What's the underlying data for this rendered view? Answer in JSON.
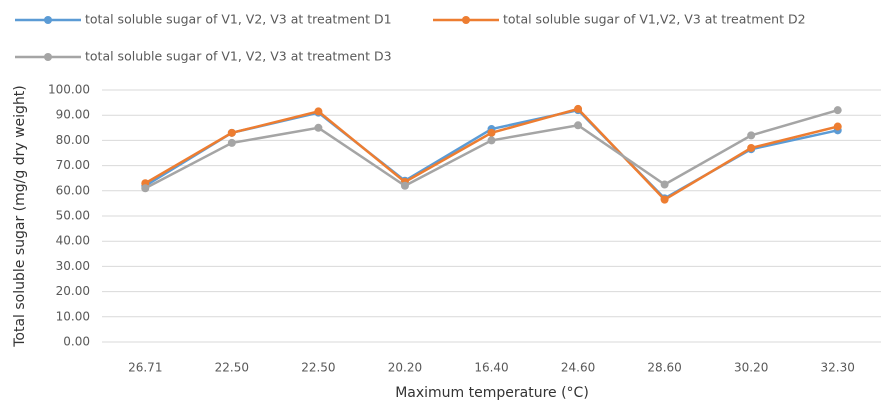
{
  "chart_data": {
    "type": "line",
    "xlabel": "Maximum temperature (°C)",
    "ylabel": "Total soluble sugar (mg/g dry weight)",
    "categories": [
      "26.71",
      "22.50",
      "22.50",
      "20.20",
      "16.40",
      "24.60",
      "28.60",
      "30.20",
      "32.30"
    ],
    "series": [
      {
        "name": "total soluble sugar of V1, V2, V3 at treatment D1",
        "color": "#5b9bd5",
        "values": [
          62,
          83,
          91,
          64,
          84.5,
          92,
          57,
          76.5,
          84
        ]
      },
      {
        "name": "total soluble sugar of V1,V2, V3 at treatment D2",
        "color": "#ed7d31",
        "values": [
          63,
          83,
          91.5,
          63.5,
          83,
          92.5,
          56.5,
          77,
          85.5
        ]
      },
      {
        "name": "total soluble sugar of V1, V2, V3 at treatment D3",
        "color": "#a5a5a5",
        "values": [
          61,
          79,
          85,
          62,
          80,
          86,
          62.5,
          82,
          92
        ]
      }
    ],
    "ylim": [
      0,
      100
    ],
    "yticks": [
      {
        "value": 0,
        "label": "0.00"
      },
      {
        "value": 10,
        "label": "10.00"
      },
      {
        "value": 20,
        "label": "20.00"
      },
      {
        "value": 30,
        "label": "30.00"
      },
      {
        "value": 40,
        "label": "40.00"
      },
      {
        "value": 50,
        "label": "50.00"
      },
      {
        "value": 60,
        "label": "60.00"
      },
      {
        "value": 70,
        "label": "70.00"
      },
      {
        "value": 80,
        "label": "80.00"
      },
      {
        "value": 90,
        "label": "90.00"
      },
      {
        "value": 100,
        "label": "100.00"
      }
    ],
    "grid": true,
    "legend": "top"
  }
}
